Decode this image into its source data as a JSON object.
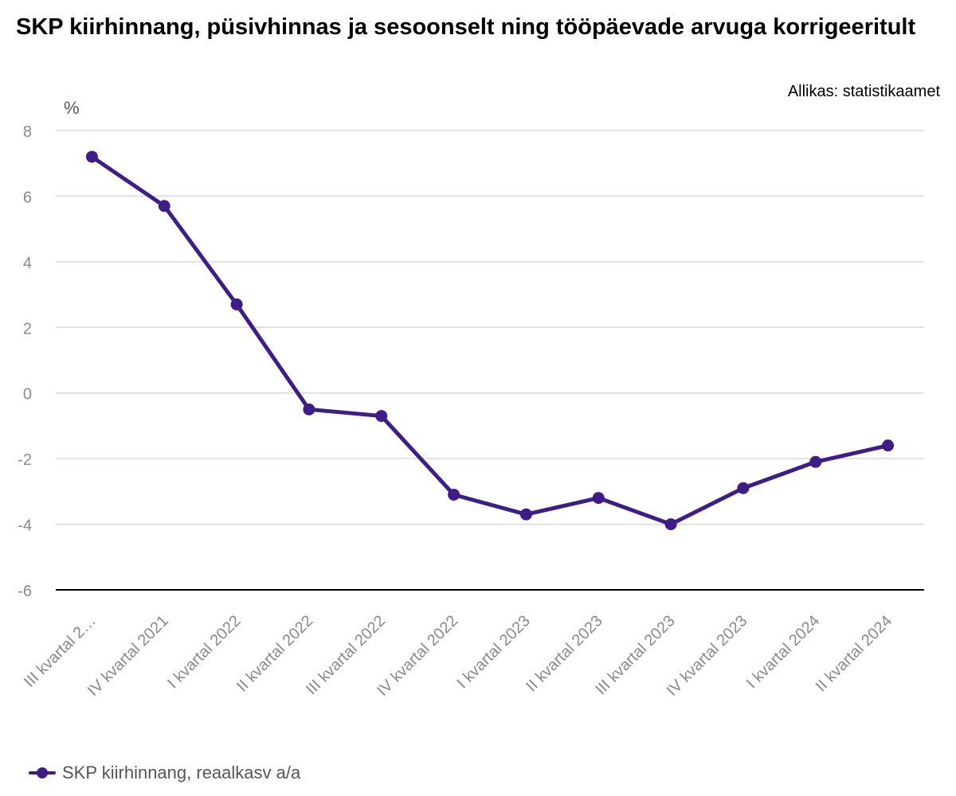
{
  "chart_data": {
    "type": "line",
    "title": "SKP kiirhinnang, püsivhinnas ja sesoonselt ning tööpäevade arvuga korrigeeritult",
    "source": "Allikas: statistikaamet",
    "ylabel": "%",
    "categories": [
      "III kvartal 2…",
      "IV kvartal 2021",
      "I kvartal 2022",
      "II kvartal 2022",
      "III kvartal 2022",
      "IV kvartal 2022",
      "I kvartal 2023",
      "II kvartal 2023",
      "III kvartal 2023",
      "IV kvartal 2023",
      "I kvartal 2024",
      "II kvartal 2024"
    ],
    "series": [
      {
        "name": "SKP kiirhinnang, reaalkasv a/a",
        "color": "#3f1d87",
        "values": [
          7.2,
          5.7,
          2.7,
          -0.5,
          -0.7,
          -3.1,
          -3.7,
          -3.2,
          -4.0,
          -2.9,
          -2.1,
          -1.6
        ]
      }
    ],
    "yticks": [
      8,
      6,
      4,
      2,
      0,
      -2,
      -4,
      -6
    ],
    "ylim": [
      -6,
      8
    ],
    "grid": true,
    "legend_position": "bottom-left"
  }
}
